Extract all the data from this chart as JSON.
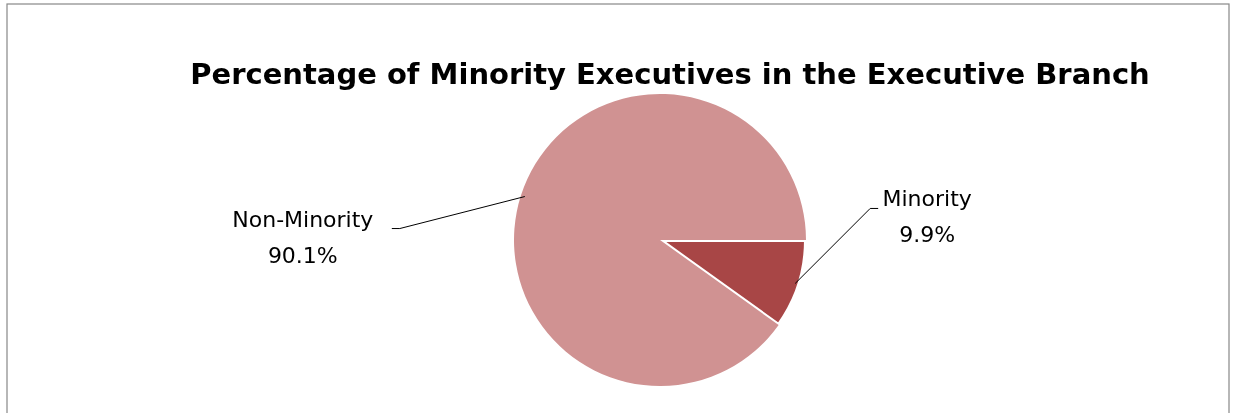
{
  "chart_data": {
    "type": "pie",
    "title": "Percentage of Minority Executives in the Executive Branch",
    "categories": [
      "Minority",
      "Non-Minority"
    ],
    "values": [
      9.9,
      90.1
    ],
    "colors": [
      "#a84646",
      "#d09292"
    ],
    "value_labels": [
      "9.9%",
      "90.1%"
    ],
    "legend": false
  }
}
